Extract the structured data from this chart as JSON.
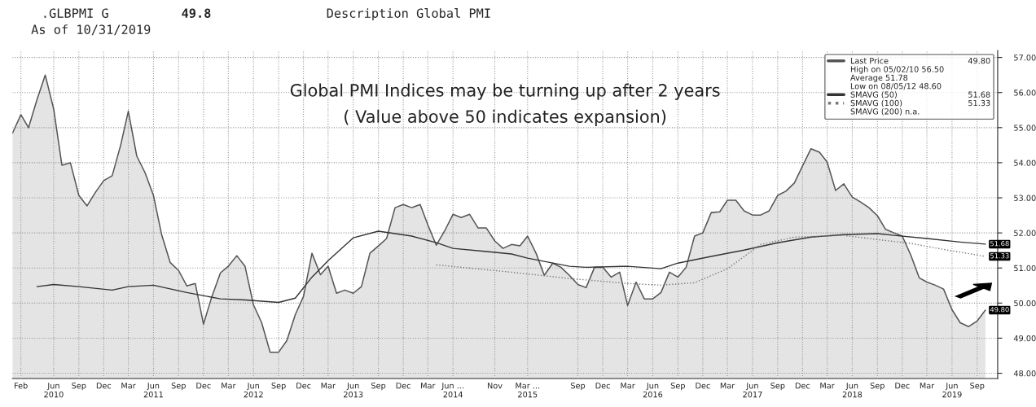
{
  "chart_data": {
    "type": "area",
    "title": "Global PMI Indices may be turning up after 2 years",
    "subtitle": "( Value above 50 indicates expansion)",
    "annotations": [
      ".GLBPMI G",
      "49.8",
      "As of 10/31/2019",
      "Description Global PMI",
      "High on 05/02/10 56.50",
      "Average 51.78",
      "Low on 08/05/12 48.60",
      "SMAVG (200) n.a."
    ],
    "x": [
      "2010-01",
      "2010-02",
      "2010-03",
      "2010-04",
      "2010-05",
      "2010-06",
      "2010-07",
      "2010-08",
      "2010-09",
      "2010-10",
      "2010-11",
      "2010-12",
      "2011-01",
      "2011-02",
      "2011-03",
      "2011-04",
      "2011-05",
      "2011-06",
      "2011-07",
      "2011-08",
      "2011-09",
      "2011-10",
      "2011-11",
      "2011-12",
      "2012-01",
      "2012-02",
      "2012-03",
      "2012-04",
      "2012-05",
      "2012-06",
      "2012-07",
      "2012-08",
      "2012-09",
      "2012-10",
      "2012-11",
      "2012-12",
      "2013-01",
      "2013-02",
      "2013-03",
      "2013-04",
      "2013-05",
      "2013-06",
      "2013-07",
      "2013-08",
      "2013-09",
      "2013-10",
      "2013-11",
      "2013-12",
      "2014-01",
      "2014-02",
      "2014-03",
      "2014-04",
      "2014-05",
      "2014-06",
      "2014-07",
      "2014-08",
      "2014-09",
      "2014-10",
      "2014-11",
      "2014-12",
      "2015-01",
      "2015-02",
      "2015-03",
      "2015-04",
      "2015-05",
      "2015-06",
      "2015-07",
      "2015-08",
      "2015-09",
      "2015-10",
      "2015-11",
      "2015-12",
      "2016-01",
      "2016-02",
      "2016-03",
      "2016-04",
      "2016-05",
      "2016-06",
      "2016-07",
      "2016-08",
      "2016-09",
      "2016-10",
      "2016-11",
      "2016-12",
      "2017-01",
      "2017-02",
      "2017-03",
      "2017-04",
      "2017-05",
      "2017-06",
      "2017-07",
      "2017-08",
      "2017-09",
      "2017-10",
      "2017-11",
      "2017-12",
      "2018-01",
      "2018-02",
      "2018-03",
      "2018-04",
      "2018-05",
      "2018-06",
      "2018-07",
      "2018-08",
      "2018-09",
      "2018-10",
      "2018-11",
      "2018-12",
      "2019-01",
      "2019-02",
      "2019-03",
      "2019-04",
      "2019-05",
      "2019-06",
      "2019-07",
      "2019-08",
      "2019-09",
      "2019-10"
    ],
    "series": [
      {
        "name": "Last Price",
        "color": "#555555",
        "value_labels": [
          null,
          null,
          null,
          null,
          null,
          null,
          null,
          null,
          null,
          null,
          null,
          null,
          null,
          null,
          null,
          null,
          null,
          null,
          null,
          null,
          null,
          null,
          null,
          null,
          null,
          null,
          null,
          null,
          null,
          null,
          null,
          null,
          null,
          null,
          null,
          null,
          null,
          null,
          null,
          null,
          null,
          null,
          null,
          null,
          null,
          null,
          null,
          null,
          null,
          null,
          null,
          null,
          null,
          null,
          null,
          null,
          null,
          null,
          null,
          null,
          null,
          null,
          null,
          null,
          null,
          null,
          null,
          null,
          null,
          null,
          null,
          null,
          null,
          null,
          null,
          null,
          null,
          null,
          null,
          null,
          null,
          null,
          null,
          null,
          null,
          null,
          null,
          null,
          null,
          null,
          null,
          null,
          null,
          null,
          null,
          null,
          null,
          null,
          null,
          null,
          null,
          null,
          null,
          null,
          null,
          null,
          null,
          null,
          null,
          null,
          null,
          null,
          null,
          null,
          null,
          null,
          null,
          "49.80"
        ],
        "values": [
          54.84,
          55.37,
          55.0,
          55.8,
          56.5,
          55.53,
          53.93,
          54.0,
          53.07,
          52.77,
          53.16,
          53.49,
          53.63,
          54.5,
          55.47,
          54.19,
          53.72,
          53.07,
          51.95,
          51.16,
          50.93,
          50.49,
          50.56,
          49.4,
          50.19,
          50.86,
          51.05,
          51.35,
          51.05,
          49.95,
          49.44,
          48.6,
          48.6,
          48.93,
          49.67,
          50.19,
          51.42,
          50.81,
          51.05,
          50.28,
          50.37,
          50.28,
          50.47,
          51.42,
          51.63,
          51.84,
          52.72,
          52.81,
          52.72,
          52.81,
          52.23,
          51.65,
          52.05,
          52.53,
          52.44,
          52.53,
          52.14,
          52.14,
          51.77,
          51.56,
          51.67,
          51.63,
          51.91,
          51.42,
          50.79,
          51.14,
          51.02,
          50.79,
          50.53,
          50.44,
          51.02,
          51.02,
          50.74,
          50.88,
          49.93,
          50.6,
          50.12,
          50.12,
          50.3,
          50.88,
          50.74,
          51.02,
          51.91,
          52.0,
          52.58,
          52.6,
          52.93,
          52.93,
          52.63,
          52.51,
          52.51,
          52.63,
          53.07,
          53.19,
          53.42,
          53.91,
          54.4,
          54.3,
          54.02,
          53.21,
          53.4,
          53.02,
          52.88,
          52.72,
          52.49,
          52.1,
          52.0,
          51.91,
          51.37,
          50.72,
          50.6,
          50.51,
          50.4,
          49.81,
          49.44,
          49.33,
          49.49,
          49.8
        ]
      },
      {
        "name": "SMAVG (50)",
        "type": "line",
        "color": "#333333",
        "line_style": "solid",
        "value_labels": [
          null,
          null,
          null,
          null,
          null,
          null,
          null,
          null,
          null,
          null,
          null,
          null,
          null,
          null,
          null,
          null,
          null,
          null,
          null,
          null,
          null,
          null,
          null,
          null,
          null,
          null,
          null,
          null,
          null,
          null,
          null,
          null,
          null,
          null,
          null,
          "51.68"
        ],
        "x": [
          "2010-04",
          "2010-06",
          "2010-09",
          "2011-01",
          "2011-03",
          "2011-06",
          "2011-10",
          "2012-02",
          "2012-05",
          "2012-09",
          "2012-11",
          "2013-01",
          "2013-03",
          "2013-06",
          "2013-09",
          "2014-01",
          "2014-04",
          "2014-06",
          "2014-10",
          "2015-01",
          "2015-03",
          "2015-08",
          "2015-10",
          "2016-03",
          "2016-07",
          "2016-09",
          "2017-01",
          "2017-05",
          "2017-09",
          "2018-01",
          "2018-05",
          "2018-09",
          "2018-11",
          "2019-03",
          "2019-07",
          "2019-10"
        ],
        "values": [
          50.47,
          50.53,
          50.47,
          50.37,
          50.47,
          50.51,
          50.3,
          50.12,
          50.09,
          50.02,
          50.14,
          50.74,
          51.21,
          51.86,
          52.05,
          51.91,
          51.72,
          51.56,
          51.47,
          51.4,
          51.28,
          51.05,
          51.02,
          51.05,
          50.98,
          51.14,
          51.33,
          51.51,
          51.72,
          51.88,
          51.95,
          51.98,
          51.93,
          51.84,
          51.74,
          51.68
        ]
      },
      {
        "name": "SMAVG (100)",
        "type": "line",
        "color": "#777777",
        "line_style": "dotted",
        "value_labels": [
          null,
          null,
          null,
          null,
          null,
          null,
          null,
          null,
          null,
          null,
          null,
          null,
          null,
          "51.33"
        ],
        "x": [
          "2014-04",
          "2015-01",
          "2015-08",
          "2016-03",
          "2016-07",
          "2016-11",
          "2017-03",
          "2017-07",
          "2017-11",
          "2018-05",
          "2018-09",
          "2019-01",
          "2019-05",
          "2019-10"
        ],
        "values": [
          51.09,
          50.88,
          50.7,
          50.56,
          50.51,
          50.58,
          50.98,
          51.67,
          51.88,
          51.93,
          51.81,
          51.7,
          51.53,
          51.33
        ]
      }
    ],
    "xlim": [
      "2010-01",
      "2019-11-15"
    ],
    "xticks": [
      {
        "value": "2010-02",
        "label": "Feb"
      },
      {
        "value": "2010-06",
        "label": "Jun\n2010"
      },
      {
        "value": "2010-09",
        "label": "Sep"
      },
      {
        "value": "2010-12",
        "label": "Dec"
      },
      {
        "value": "2011-03",
        "label": "Mar"
      },
      {
        "value": "2011-06",
        "label": "Jun\n2011"
      },
      {
        "value": "2011-09",
        "label": "Sep"
      },
      {
        "value": "2011-12",
        "label": "Dec"
      },
      {
        "value": "2012-03",
        "label": "Mar"
      },
      {
        "value": "2012-06",
        "label": "Jun\n2012"
      },
      {
        "value": "2012-09",
        "label": "Sep"
      },
      {
        "value": "2012-12",
        "label": "Dec"
      },
      {
        "value": "2013-03",
        "label": "Mar"
      },
      {
        "value": "2013-06",
        "label": "Jun\n2013"
      },
      {
        "value": "2013-09",
        "label": "Sep"
      },
      {
        "value": "2013-12",
        "label": "Dec"
      },
      {
        "value": "2014-03",
        "label": "Mar"
      },
      {
        "value": "2014-06",
        "label": "Jun ...\n2014"
      },
      {
        "value": "2014-11",
        "label": "Nov"
      },
      {
        "value": "2015-03",
        "label": "Mar ...\n2015"
      },
      {
        "value": "2015-09",
        "label": "Sep"
      },
      {
        "value": "2015-12",
        "label": "Dec"
      },
      {
        "value": "2016-03",
        "label": "Mar"
      },
      {
        "value": "2016-06",
        "label": "Jun\n2016"
      },
      {
        "value": "2016-09",
        "label": "Sep"
      },
      {
        "value": "2016-12",
        "label": "Dec"
      },
      {
        "value": "2017-03",
        "label": "Mar"
      },
      {
        "value": "2017-06",
        "label": "Jun\n2017"
      },
      {
        "value": "2017-09",
        "label": "Sep"
      },
      {
        "value": "2017-12",
        "label": "Dec"
      },
      {
        "value": "2018-03",
        "label": "Mar"
      },
      {
        "value": "2018-06",
        "label": "Jun\n2018"
      },
      {
        "value": "2018-09",
        "label": "Sep"
      },
      {
        "value": "2018-12",
        "label": "Dec"
      },
      {
        "value": "2019-03",
        "label": "Mar"
      },
      {
        "value": "2019-06",
        "label": "Jun\n2019"
      },
      {
        "value": "2019-09",
        "label": "Sep"
      }
    ],
    "ylim": [
      47.85,
      57.2
    ],
    "yticks": [
      {
        "value": 48,
        "label": "48.00"
      },
      {
        "value": 49,
        "label": "49.00"
      },
      {
        "value": 50,
        "label": "50.00"
      },
      {
        "value": 51,
        "label": "51.00"
      },
      {
        "value": 52,
        "label": "52.00"
      },
      {
        "value": 53,
        "label": "53.00"
      },
      {
        "value": 54,
        "label": "54.00"
      },
      {
        "value": 55,
        "label": "55.00"
      },
      {
        "value": 56,
        "label": "56.00"
      },
      {
        "value": 57,
        "label": "57.00"
      }
    ],
    "grid": true,
    "legend": "top right"
  }
}
